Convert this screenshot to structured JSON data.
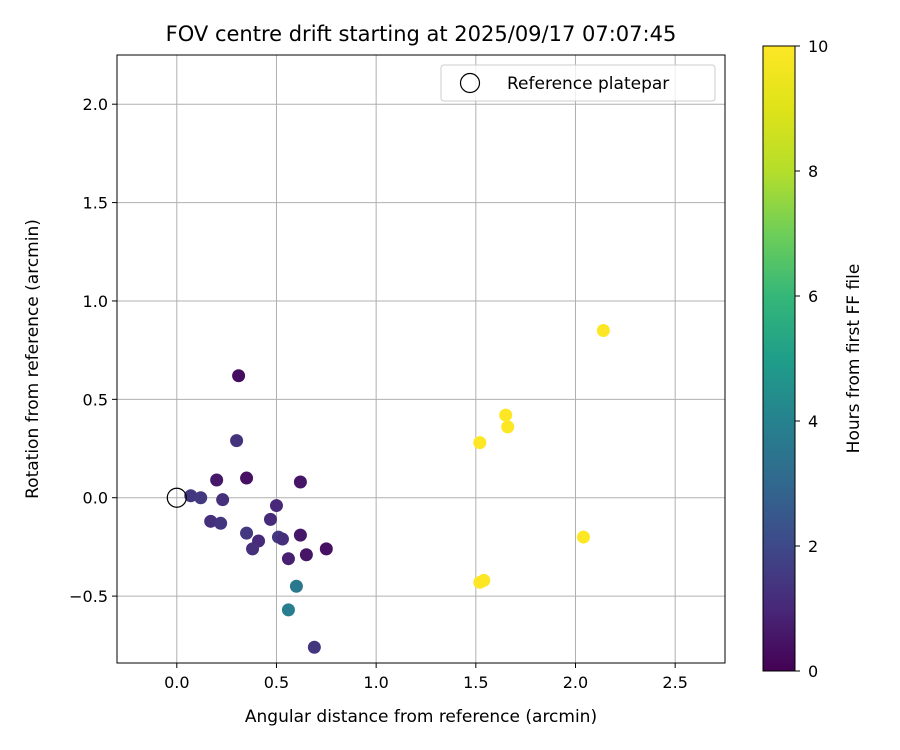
{
  "chart_data": {
    "type": "scatter",
    "title": "FOV centre drift starting at 2025/09/17 07:07:45",
    "xlabel": "Angular distance from reference (arcmin)",
    "ylabel": "Rotation from reference (arcmin)",
    "xlim": [
      -0.3,
      2.75
    ],
    "ylim": [
      -0.84,
      2.25
    ],
    "xticks": [
      0.0,
      0.5,
      1.0,
      1.5,
      2.0,
      2.5
    ],
    "xtick_labels": [
      "0.0",
      "0.5",
      "1.0",
      "1.5",
      "2.0",
      "2.5"
    ],
    "yticks": [
      -0.5,
      0.0,
      0.5,
      1.0,
      1.5,
      2.0
    ],
    "ytick_labels": [
      "−0.5",
      "0.0",
      "0.5",
      "1.0",
      "1.5",
      "2.0"
    ],
    "grid": true,
    "legend": {
      "location": "upper-right",
      "entries": [
        "Reference platepar"
      ]
    },
    "reference_point": {
      "x": 0.0,
      "y": 0.0
    },
    "colorbar": {
      "label": "Hours from first FF file",
      "colormap": "viridis",
      "range": [
        0,
        10
      ],
      "ticks": [
        0,
        2,
        4,
        6,
        8,
        10
      ],
      "tick_labels": [
        "0",
        "2",
        "4",
        "6",
        "8",
        "10"
      ]
    },
    "points": [
      {
        "x": 0.31,
        "y": 0.62,
        "hours": 0.3
      },
      {
        "x": 0.35,
        "y": 0.1,
        "hours": 0.4
      },
      {
        "x": 0.2,
        "y": 0.09,
        "hours": 0.6
      },
      {
        "x": 0.62,
        "y": 0.08,
        "hours": 0.5
      },
      {
        "x": 0.3,
        "y": 0.29,
        "hours": 1.3
      },
      {
        "x": 0.07,
        "y": 0.01,
        "hours": 1.4
      },
      {
        "x": 0.12,
        "y": 0.0,
        "hours": 1.5
      },
      {
        "x": 0.23,
        "y": -0.01,
        "hours": 1.2
      },
      {
        "x": 0.17,
        "y": -0.12,
        "hours": 1.2
      },
      {
        "x": 0.22,
        "y": -0.13,
        "hours": 1.4
      },
      {
        "x": 0.35,
        "y": -0.18,
        "hours": 1.5
      },
      {
        "x": 0.41,
        "y": -0.22,
        "hours": 1.1
      },
      {
        "x": 0.38,
        "y": -0.26,
        "hours": 1.2
      },
      {
        "x": 0.47,
        "y": -0.11,
        "hours": 1.1
      },
      {
        "x": 0.5,
        "y": -0.04,
        "hours": 1.0
      },
      {
        "x": 0.51,
        "y": -0.2,
        "hours": 1.5
      },
      {
        "x": 0.53,
        "y": -0.21,
        "hours": 1.2
      },
      {
        "x": 0.56,
        "y": -0.31,
        "hours": 0.8
      },
      {
        "x": 0.62,
        "y": -0.19,
        "hours": 0.6
      },
      {
        "x": 0.65,
        "y": -0.29,
        "hours": 0.5
      },
      {
        "x": 0.75,
        "y": -0.26,
        "hours": 0.4
      },
      {
        "x": 0.6,
        "y": -0.45,
        "hours": 3.6
      },
      {
        "x": 0.56,
        "y": -0.57,
        "hours": 3.8
      },
      {
        "x": 0.69,
        "y": -0.76,
        "hours": 1.4
      },
      {
        "x": 1.52,
        "y": 0.28,
        "hours": 10
      },
      {
        "x": 1.65,
        "y": 0.42,
        "hours": 10
      },
      {
        "x": 1.66,
        "y": 0.36,
        "hours": 10
      },
      {
        "x": 2.14,
        "y": 0.85,
        "hours": 10
      },
      {
        "x": 2.04,
        "y": -0.2,
        "hours": 10
      },
      {
        "x": 1.52,
        "y": -0.43,
        "hours": 10
      },
      {
        "x": 1.54,
        "y": -0.42,
        "hours": 10
      }
    ]
  }
}
